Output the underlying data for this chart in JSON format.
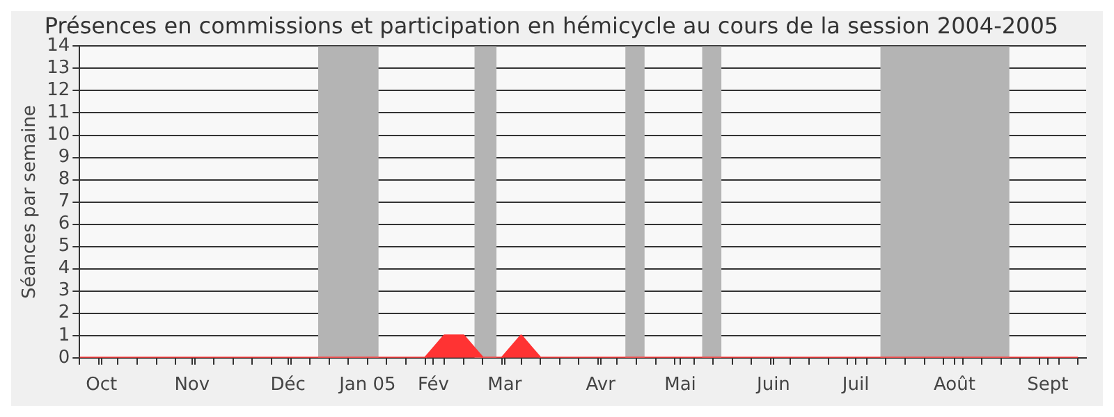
{
  "chart_data": {
    "type": "area",
    "title": "Présences en commissions et participation en hémicycle au cours de la session 2004-2005",
    "ylabel": "Séances par semaine",
    "x": [
      "2004-09-27",
      "2004-10-04",
      "2004-10-11",
      "2004-10-18",
      "2004-10-25",
      "2004-11-01",
      "2004-11-08",
      "2004-11-15",
      "2004-11-22",
      "2004-11-29",
      "2004-12-06",
      "2004-12-13",
      "2004-12-20",
      "2004-12-27",
      "2005-01-03",
      "2005-01-10",
      "2005-01-17",
      "2005-01-24",
      "2005-01-31",
      "2005-02-07",
      "2005-02-14",
      "2005-02-21",
      "2005-02-28",
      "2005-03-07",
      "2005-03-14",
      "2005-03-21",
      "2005-03-28",
      "2005-04-04",
      "2005-04-11",
      "2005-04-18",
      "2005-04-25",
      "2005-05-02",
      "2005-05-09",
      "2005-05-16",
      "2005-05-23",
      "2005-05-30",
      "2005-06-06",
      "2005-06-13",
      "2005-06-20",
      "2005-06-27",
      "2005-07-04",
      "2005-07-11",
      "2005-07-18",
      "2005-07-25",
      "2005-08-01",
      "2005-08-08",
      "2005-08-15",
      "2005-08-22",
      "2005-08-29",
      "2005-09-05",
      "2005-09-12",
      "2005-09-19",
      "2005-09-26"
    ],
    "series": [
      {
        "color": "#ff3333",
        "values": [
          0,
          0,
          0,
          0,
          0,
          0,
          0,
          0,
          0,
          0,
          0,
          0,
          0,
          0,
          0,
          0,
          0,
          0,
          0,
          1,
          1,
          0,
          0,
          1,
          0,
          0,
          0,
          0,
          0,
          0,
          0,
          0,
          0,
          0,
          0,
          0,
          0,
          0,
          0,
          0,
          0,
          0,
          0,
          0,
          0,
          0,
          0,
          0,
          0,
          0,
          0,
          0,
          0
        ]
      }
    ],
    "xlim": [
      "2004-09-27",
      "2005-09-29"
    ],
    "xticks": [
      {
        "value": "2004-09-27",
        "label": null
      },
      {
        "value": "2004-10-04",
        "label": null
      },
      {
        "value": "2004-10-05",
        "label": "Oct"
      },
      {
        "value": "2004-10-11",
        "label": null
      },
      {
        "value": "2004-10-18",
        "label": null
      },
      {
        "value": "2004-10-25",
        "label": null
      },
      {
        "value": "2004-11-01",
        "label": null
      },
      {
        "value": "2004-11-07",
        "label": "Nov"
      },
      {
        "value": "2004-11-08",
        "label": null
      },
      {
        "value": "2004-11-15",
        "label": null
      },
      {
        "value": "2004-11-22",
        "label": null
      },
      {
        "value": "2004-11-29",
        "label": null
      },
      {
        "value": "2004-12-06",
        "label": null
      },
      {
        "value": "2004-12-12",
        "label": "Déc"
      },
      {
        "value": "2004-12-13",
        "label": null
      },
      {
        "value": "2004-12-20",
        "label": null
      },
      {
        "value": "2004-12-27",
        "label": null
      },
      {
        "value": "2005-01-03",
        "label": null
      },
      {
        "value": "2005-01-10",
        "label": "Jan 05"
      },
      {
        "value": "2005-01-17",
        "label": null
      },
      {
        "value": "2005-01-24",
        "label": null
      },
      {
        "value": "2005-01-31",
        "label": null
      },
      {
        "value": "2005-02-03",
        "label": "Fév"
      },
      {
        "value": "2005-02-07",
        "label": null
      },
      {
        "value": "2005-02-14",
        "label": null
      },
      {
        "value": "2005-02-21",
        "label": null
      },
      {
        "value": "2005-02-28",
        "label": null
      },
      {
        "value": "2005-03-01",
        "label": "Mar"
      },
      {
        "value": "2005-03-07",
        "label": null
      },
      {
        "value": "2005-03-14",
        "label": null
      },
      {
        "value": "2005-03-21",
        "label": null
      },
      {
        "value": "2005-03-28",
        "label": null
      },
      {
        "value": "2005-04-04",
        "label": null
      },
      {
        "value": "2005-04-05",
        "label": "Avr"
      },
      {
        "value": "2005-04-11",
        "label": null
      },
      {
        "value": "2005-04-18",
        "label": null
      },
      {
        "value": "2005-04-25",
        "label": null
      },
      {
        "value": "2005-05-02",
        "label": null
      },
      {
        "value": "2005-05-04",
        "label": "Mai"
      },
      {
        "value": "2005-05-09",
        "label": null
      },
      {
        "value": "2005-05-16",
        "label": null
      },
      {
        "value": "2005-05-23",
        "label": null
      },
      {
        "value": "2005-05-30",
        "label": null
      },
      {
        "value": "2005-06-06",
        "label": null
      },
      {
        "value": "2005-06-07",
        "label": "Juin"
      },
      {
        "value": "2005-06-13",
        "label": null
      },
      {
        "value": "2005-06-20",
        "label": null
      },
      {
        "value": "2005-06-27",
        "label": null
      },
      {
        "value": "2005-07-04",
        "label": null
      },
      {
        "value": "2005-07-07",
        "label": "Juil"
      },
      {
        "value": "2005-07-11",
        "label": null
      },
      {
        "value": "2005-07-18",
        "label": null
      },
      {
        "value": "2005-07-25",
        "label": null
      },
      {
        "value": "2005-08-01",
        "label": null
      },
      {
        "value": "2005-08-08",
        "label": null
      },
      {
        "value": "2005-08-12",
        "label": "Août"
      },
      {
        "value": "2005-08-15",
        "label": null
      },
      {
        "value": "2005-08-22",
        "label": null
      },
      {
        "value": "2005-08-29",
        "label": null
      },
      {
        "value": "2005-09-05",
        "label": null
      },
      {
        "value": "2005-09-12",
        "label": null
      },
      {
        "value": "2005-09-15",
        "label": "Sept"
      },
      {
        "value": "2005-09-19",
        "label": null
      },
      {
        "value": "2005-09-26",
        "label": null
      }
    ],
    "ylim": [
      0,
      14
    ],
    "yticks": [
      0,
      1,
      2,
      3,
      4,
      5,
      6,
      7,
      8,
      9,
      10,
      11,
      12,
      13,
      14
    ],
    "bands": [
      {
        "axis": "x",
        "from": "2004-12-23",
        "to": "2005-01-14",
        "color": "#b4b4b4"
      },
      {
        "axis": "x",
        "from": "2005-02-18",
        "to": "2005-02-26",
        "color": "#b4b4b4"
      },
      {
        "axis": "x",
        "from": "2005-04-14",
        "to": "2005-04-21",
        "color": "#b4b4b4"
      },
      {
        "axis": "x",
        "from": "2005-05-12",
        "to": "2005-05-19",
        "color": "#b4b4b4"
      },
      {
        "axis": "x",
        "from": "2005-07-16",
        "to": "2005-09-01",
        "color": "#b4b4b4"
      }
    ],
    "grid": "y",
    "legend": false,
    "marker": "none"
  }
}
